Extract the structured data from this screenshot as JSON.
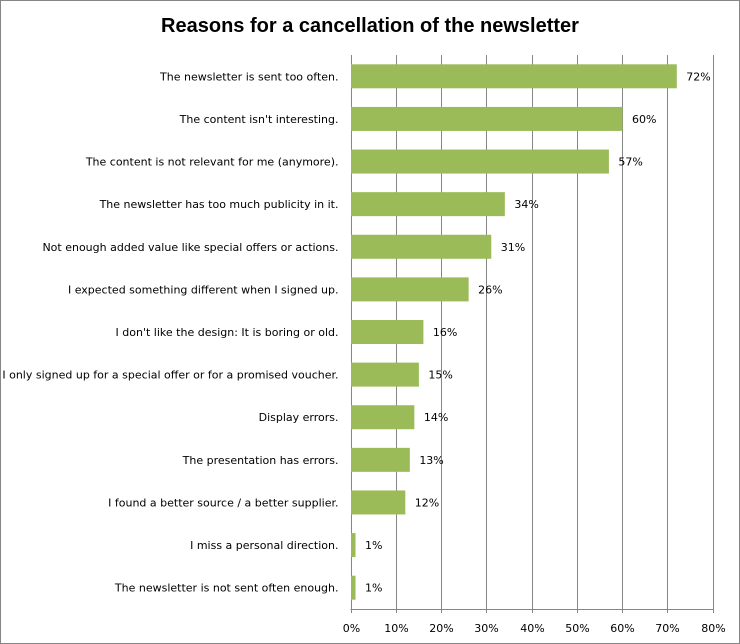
{
  "chart_data": {
    "type": "bar",
    "orientation": "horizontal",
    "title": "Reasons for a cancellation of the newsletter",
    "categories": [
      "The newsletter is sent too often.",
      "The content isn't interesting.",
      "The content is not relevant for me (anymore).",
      "The newsletter has too much publicity in it.",
      "Not enough added value like special offers or actions.",
      "I expected something different when I signed up.",
      "I don't like the design: It is boring or old.",
      "I only signed up for a special offer or for a promised voucher.",
      "Display errors.",
      "The presentation has errors.",
      "I found a better source / a better supplier.",
      "I miss a personal direction.",
      "The newsletter is not sent often enough."
    ],
    "values": [
      72,
      60,
      57,
      34,
      31,
      26,
      16,
      15,
      14,
      13,
      12,
      1,
      1
    ],
    "data_labels": [
      "72%",
      "60%",
      "57%",
      "34%",
      "31%",
      "26%",
      "16%",
      "15%",
      "14%",
      "13%",
      "12%",
      "1%",
      "1%"
    ],
    "xlim": [
      0,
      80
    ],
    "x_ticks": [
      "0%",
      "10%",
      "20%",
      "30%",
      "40%",
      "50%",
      "60%",
      "70%",
      "80%"
    ],
    "grid": "vertical",
    "legend": "none",
    "bar_color": "#9BBB59"
  }
}
